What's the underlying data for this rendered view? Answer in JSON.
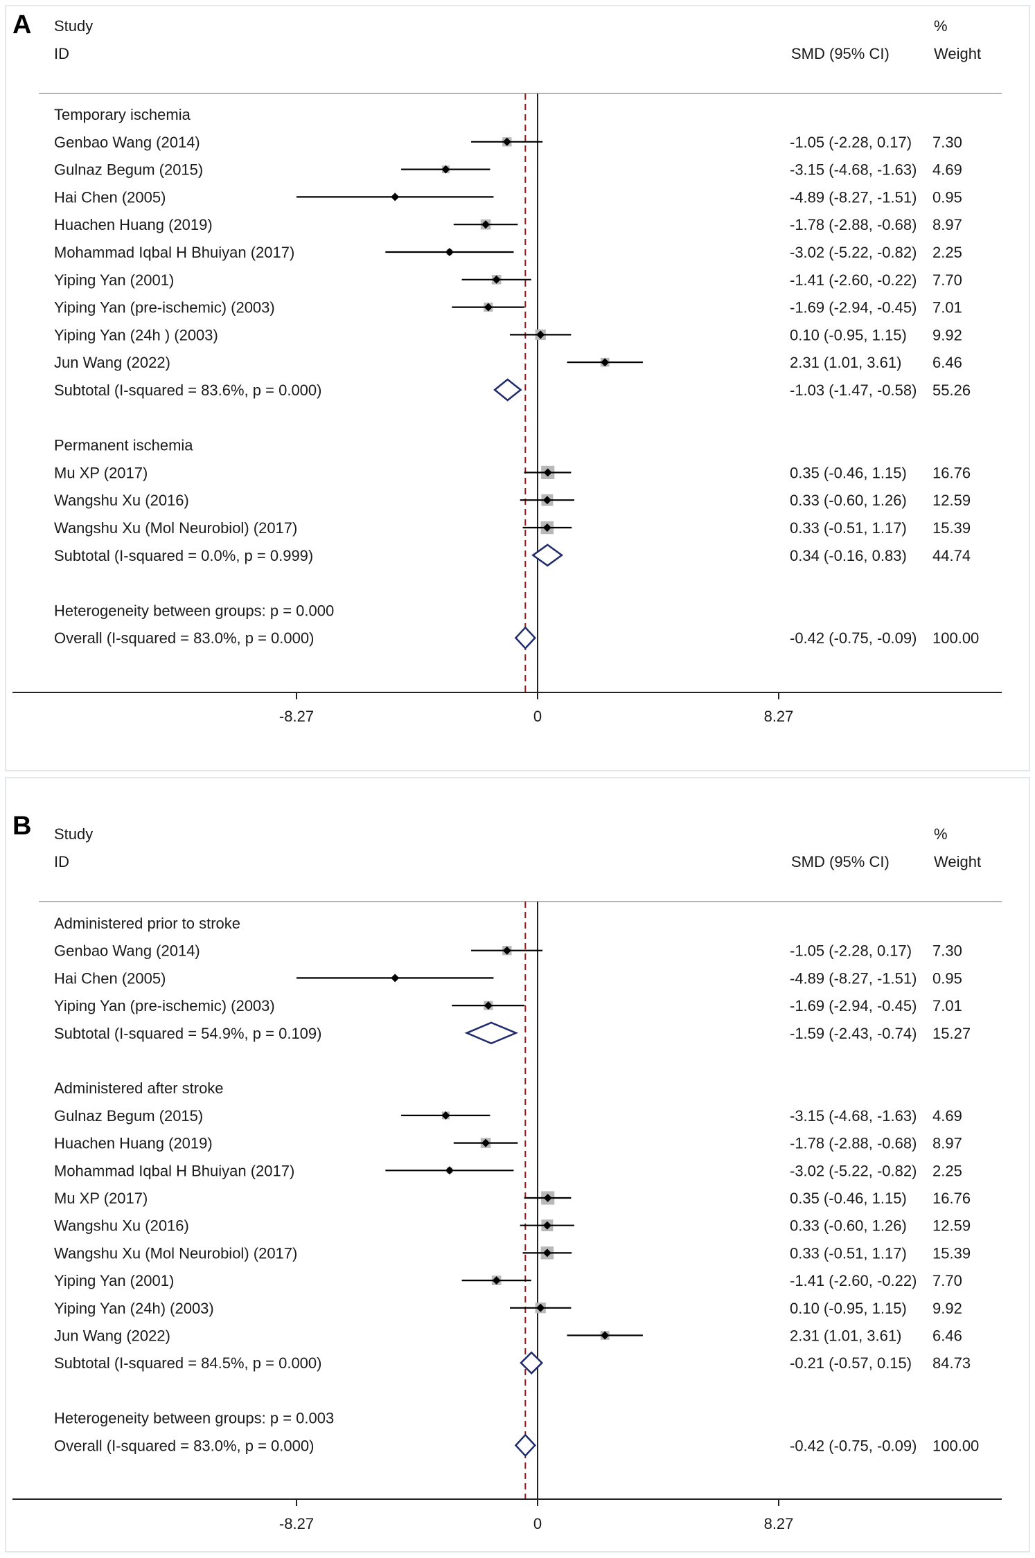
{
  "chart_data": [
    {
      "type": "forest",
      "panel_label": "A",
      "header": {
        "study": "Study",
        "id": "ID",
        "estimate": "SMD (95% CI)",
        "pct": "%",
        "weight": "Weight"
      },
      "ticks": [
        -8.27,
        0,
        8.27
      ],
      "tick_labels": [
        "-8.27",
        "0",
        "8.27"
      ],
      "xlim": [
        -17.2,
        16.5
      ],
      "overall_line": -0.42,
      "rows": [
        {
          "kind": "group",
          "label": "Temporary ischemia"
        },
        {
          "kind": "study",
          "label": "Genbao Wang (2014)",
          "est": -1.05,
          "lo": -2.28,
          "hi": 0.17,
          "weight": 7.3,
          "ci_text": "-1.05 (-2.28, 0.17)",
          "weight_text": "7.30"
        },
        {
          "kind": "study",
          "label": "Gulnaz Begum (2015)",
          "est": -3.15,
          "lo": -4.68,
          "hi": -1.63,
          "weight": 4.69,
          "ci_text": "-3.15 (-4.68, -1.63)",
          "weight_text": "4.69"
        },
        {
          "kind": "study",
          "label": "Hai Chen (2005)",
          "est": -4.89,
          "lo": -8.27,
          "hi": -1.51,
          "weight": 0.95,
          "ci_text": "-4.89 (-8.27, -1.51)",
          "weight_text": "0.95"
        },
        {
          "kind": "study",
          "label": "Huachen Huang (2019)",
          "est": -1.78,
          "lo": -2.88,
          "hi": -0.68,
          "weight": 8.97,
          "ci_text": "-1.78 (-2.88, -0.68)",
          "weight_text": "8.97"
        },
        {
          "kind": "study",
          "label": "Mohammad Iqbal H Bhuiyan (2017)",
          "est": -3.02,
          "lo": -5.22,
          "hi": -0.82,
          "weight": 2.25,
          "ci_text": "-3.02 (-5.22, -0.82)",
          "weight_text": "2.25"
        },
        {
          "kind": "study",
          "label": "Yiping Yan (2001)",
          "est": -1.41,
          "lo": -2.6,
          "hi": -0.22,
          "weight": 7.7,
          "ci_text": "-1.41 (-2.60, -0.22)",
          "weight_text": "7.70"
        },
        {
          "kind": "study",
          "label": "Yiping Yan (pre-ischemic) (2003)",
          "est": -1.69,
          "lo": -2.94,
          "hi": -0.45,
          "weight": 7.01,
          "ci_text": "-1.69 (-2.94, -0.45)",
          "weight_text": "7.01"
        },
        {
          "kind": "study",
          "label": "Yiping Yan (24h ) (2003)",
          "est": 0.1,
          "lo": -0.95,
          "hi": 1.15,
          "weight": 9.92,
          "ci_text": "0.10 (-0.95, 1.15)",
          "weight_text": "9.92"
        },
        {
          "kind": "study",
          "label": "Jun Wang (2022)",
          "est": 2.31,
          "lo": 1.01,
          "hi": 3.61,
          "weight": 6.46,
          "ci_text": "2.31 (1.01, 3.61)",
          "weight_text": "6.46"
        },
        {
          "kind": "subtotal",
          "label": "Subtotal  (I-squared = 83.6%, p = 0.000)",
          "est": -1.03,
          "lo": -1.47,
          "hi": -0.58,
          "ci_text": "-1.03 (-1.47, -0.58)",
          "weight_text": "55.26"
        },
        {
          "kind": "blank"
        },
        {
          "kind": "group",
          "label": "Permanent ischemia"
        },
        {
          "kind": "study",
          "label": "Mu XP (2017)",
          "est": 0.35,
          "lo": -0.46,
          "hi": 1.15,
          "weight": 16.76,
          "ci_text": "0.35 (-0.46, 1.15)",
          "weight_text": "16.76"
        },
        {
          "kind": "study",
          "label": "Wangshu Xu (2016)",
          "est": 0.33,
          "lo": -0.6,
          "hi": 1.26,
          "weight": 12.59,
          "ci_text": "0.33 (-0.60, 1.26)",
          "weight_text": "12.59"
        },
        {
          "kind": "study",
          "label": "Wangshu Xu (Mol Neurobiol) (2017)",
          "est": 0.33,
          "lo": -0.51,
          "hi": 1.17,
          "weight": 15.39,
          "ci_text": "0.33 (-0.51, 1.17)",
          "weight_text": "15.39"
        },
        {
          "kind": "subtotal",
          "label": "Subtotal  (I-squared = 0.0%, p = 0.999)",
          "est": 0.34,
          "lo": -0.16,
          "hi": 0.83,
          "ci_text": "0.34 (-0.16, 0.83)",
          "weight_text": "44.74"
        },
        {
          "kind": "blank"
        },
        {
          "kind": "text",
          "label": "Heterogeneity between groups: p = 0.000"
        },
        {
          "kind": "subtotal",
          "label": "Overall  (I-squared = 83.0%, p = 0.000)",
          "est": -0.42,
          "lo": -0.75,
          "hi": -0.09,
          "ci_text": "-0.42 (-0.75, -0.09)",
          "weight_text": "100.00"
        }
      ]
    },
    {
      "type": "forest",
      "panel_label": "B",
      "header": {
        "study": "Study",
        "id": "ID",
        "estimate": "SMD (95% CI)",
        "pct": "%",
        "weight": "Weight"
      },
      "ticks": [
        -8.27,
        0,
        8.27
      ],
      "tick_labels": [
        "-8.27",
        "0",
        "8.27"
      ],
      "xlim": [
        -17.2,
        16.5
      ],
      "overall_line": -0.42,
      "rows": [
        {
          "kind": "group",
          "label": "Administered prior to stroke"
        },
        {
          "kind": "study",
          "label": "Genbao Wang (2014)",
          "est": -1.05,
          "lo": -2.28,
          "hi": 0.17,
          "weight": 7.3,
          "ci_text": "-1.05 (-2.28, 0.17)",
          "weight_text": "7.30"
        },
        {
          "kind": "study",
          "label": "Hai Chen (2005)",
          "est": -4.89,
          "lo": -8.27,
          "hi": -1.51,
          "weight": 0.95,
          "ci_text": "-4.89 (-8.27, -1.51)",
          "weight_text": "0.95"
        },
        {
          "kind": "study",
          "label": "Yiping Yan (pre-ischemic) (2003)",
          "est": -1.69,
          "lo": -2.94,
          "hi": -0.45,
          "weight": 7.01,
          "ci_text": "-1.69 (-2.94, -0.45)",
          "weight_text": "7.01"
        },
        {
          "kind": "subtotal",
          "label": "Subtotal  (I-squared = 54.9%, p = 0.109)",
          "est": -1.59,
          "lo": -2.43,
          "hi": -0.74,
          "ci_text": "-1.59 (-2.43, -0.74)",
          "weight_text": "15.27"
        },
        {
          "kind": "blank"
        },
        {
          "kind": "group",
          "label": "Administered after stroke"
        },
        {
          "kind": "study",
          "label": "Gulnaz Begum (2015)",
          "est": -3.15,
          "lo": -4.68,
          "hi": -1.63,
          "weight": 4.69,
          "ci_text": "-3.15 (-4.68, -1.63)",
          "weight_text": "4.69"
        },
        {
          "kind": "study",
          "label": "Huachen Huang (2019)",
          "est": -1.78,
          "lo": -2.88,
          "hi": -0.68,
          "weight": 8.97,
          "ci_text": "-1.78 (-2.88, -0.68)",
          "weight_text": "8.97"
        },
        {
          "kind": "study",
          "label": "Mohammad Iqbal H Bhuiyan (2017)",
          "est": -3.02,
          "lo": -5.22,
          "hi": -0.82,
          "weight": 2.25,
          "ci_text": "-3.02 (-5.22, -0.82)",
          "weight_text": "2.25"
        },
        {
          "kind": "study",
          "label": "Mu XP (2017)",
          "est": 0.35,
          "lo": -0.46,
          "hi": 1.15,
          "weight": 16.76,
          "ci_text": "0.35 (-0.46, 1.15)",
          "weight_text": "16.76"
        },
        {
          "kind": "study",
          "label": "Wangshu Xu (2016)",
          "est": 0.33,
          "lo": -0.6,
          "hi": 1.26,
          "weight": 12.59,
          "ci_text": "0.33 (-0.60, 1.26)",
          "weight_text": "12.59"
        },
        {
          "kind": "study",
          "label": "Wangshu Xu (Mol Neurobiol) (2017)",
          "est": 0.33,
          "lo": -0.51,
          "hi": 1.17,
          "weight": 15.39,
          "ci_text": "0.33 (-0.51, 1.17)",
          "weight_text": "15.39"
        },
        {
          "kind": "study",
          "label": "Yiping Yan (2001)",
          "est": -1.41,
          "lo": -2.6,
          "hi": -0.22,
          "weight": 7.7,
          "ci_text": "-1.41 (-2.60, -0.22)",
          "weight_text": "7.70"
        },
        {
          "kind": "study",
          "label": "Yiping Yan (24h) (2003)",
          "est": 0.1,
          "lo": -0.95,
          "hi": 1.15,
          "weight": 9.92,
          "ci_text": "0.10 (-0.95, 1.15)",
          "weight_text": "9.92"
        },
        {
          "kind": "study",
          "label": "Jun Wang (2022)",
          "est": 2.31,
          "lo": 1.01,
          "hi": 3.61,
          "weight": 6.46,
          "ci_text": "2.31 (1.01, 3.61)",
          "weight_text": "6.46"
        },
        {
          "kind": "subtotal",
          "label": "Subtotal  (I-squared = 84.5%, p = 0.000)",
          "est": -0.21,
          "lo": -0.57,
          "hi": 0.15,
          "ci_text": "-0.21 (-0.57, 0.15)",
          "weight_text": "84.73"
        },
        {
          "kind": "blank"
        },
        {
          "kind": "text",
          "label": "Heterogeneity between groups: p = 0.003"
        },
        {
          "kind": "subtotal",
          "label": "Overall  (I-squared = 83.0%, p = 0.000)",
          "est": -0.42,
          "lo": -0.75,
          "hi": -0.09,
          "ci_text": "-0.42 (-0.75, -0.09)",
          "weight_text": "100.00"
        }
      ]
    }
  ],
  "colors": {
    "diamond": "#1f2a6b",
    "weight_box": "#b8b8b8",
    "point": "#000000",
    "ci_line": "#000000",
    "reference_line": "#8b1a1a",
    "axis": "#222222"
  }
}
